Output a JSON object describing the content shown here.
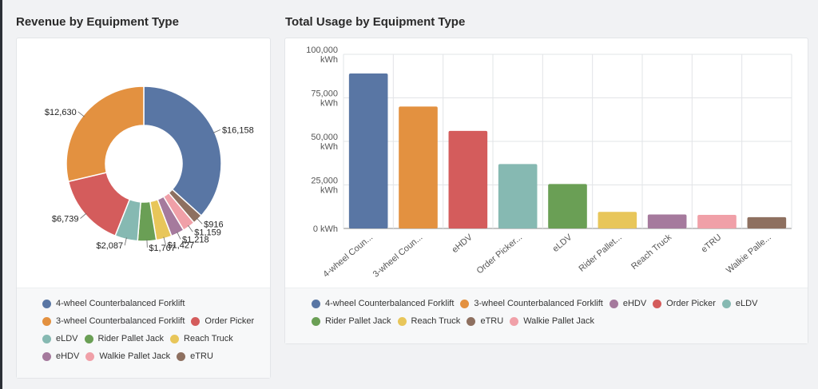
{
  "titles": {
    "left": "Revenue by Equipment Type",
    "right": "Total Usage by Equipment Type"
  },
  "colors": {
    "4-wheel Counterbalanced Forklift": "#5976a4",
    "3-wheel Counterbalanced Forklift": "#e39140",
    "Order Picker": "#d45c5c",
    "eLDV": "#86b9b2",
    "Rider Pallet Jack": "#6a9f55",
    "Reach Truck": "#e8c65a",
    "eHDV": "#a57a9d",
    "Walkie Pallet Jack": "#f0a0a8",
    "eTRU": "#8e7060"
  },
  "chart_data": [
    {
      "type": "pie",
      "title": "Revenue by Equipment Type",
      "slices": [
        {
          "name": "4-wheel Counterbalanced Forklift",
          "value": 16158,
          "label": "$16,158",
          "color": "#5976a4"
        },
        {
          "name": "eTRU",
          "value": 916,
          "label": "$916",
          "color": "#8e7060"
        },
        {
          "name": "Walkie Pallet Jack",
          "value": 1159,
          "label": "$1,159",
          "color": "#f0a0a8"
        },
        {
          "name": "eHDV",
          "value": 1218,
          "label": "$1,218",
          "color": "#a57a9d"
        },
        {
          "name": "Reach Truck",
          "value": 1427,
          "label": "$1,427",
          "color": "#e8c65a"
        },
        {
          "name": "Rider Pallet Jack",
          "value": 1707,
          "label": "$1,707",
          "color": "#6a9f55"
        },
        {
          "name": "eLDV",
          "value": 2087,
          "label": "$2,087",
          "color": "#86b9b2"
        },
        {
          "name": "Order Picker",
          "value": 6739,
          "label": "$6,739",
          "color": "#d45c5c"
        },
        {
          "name": "3-wheel Counterbalanced Forklift",
          "value": 12630,
          "label": "$12,630",
          "color": "#e39140"
        }
      ],
      "legend": [
        [
          "4-wheel Counterbalanced Forklift"
        ],
        [
          "3-wheel Counterbalanced Forklift",
          "Order Picker"
        ],
        [
          "eLDV",
          "Rider Pallet Jack",
          "Reach Truck"
        ],
        [
          "eHDV",
          "Walkie Pallet Jack",
          "eTRU"
        ]
      ],
      "legend_position": "bottom"
    },
    {
      "type": "bar",
      "title": "Total Usage by Equipment Type",
      "categories": [
        "4-wheel Coun...",
        "3-wheel Coun...",
        "eHDV",
        "Order Picker...",
        "eLDV",
        "Rider Pallet...",
        "Reach Truck",
        "eTRU",
        "Walkie Palle..."
      ],
      "series_names": [
        "4-wheel Counterbalanced Forklift",
        "3-wheel Counterbalanced Forklift",
        "eHDV",
        "Order Picker",
        "eLDV",
        "Rider Pallet Jack",
        "Reach Truck",
        "eTRU",
        "Walkie Pallet Jack"
      ],
      "values": [
        89000,
        70000,
        56000,
        37000,
        25500,
        9500,
        8000,
        7800,
        6500
      ],
      "colors": [
        "#5976a4",
        "#e39140",
        "#d45c5c",
        "#86b9b2",
        "#6a9f55",
        "#e8c65a",
        "#a57a9d",
        "#f0a0a8",
        "#8e7060"
      ],
      "ylim": [
        0,
        100000
      ],
      "yticks": [
        {
          "value": 100000,
          "label": "100,000",
          "unit": "kWh"
        },
        {
          "value": 75000,
          "label": "75,000",
          "unit": "kWh"
        },
        {
          "value": 50000,
          "label": "50,000",
          "unit": "kWh"
        },
        {
          "value": 25000,
          "label": "25,000",
          "unit": "kWh"
        },
        {
          "value": 0,
          "label": "0 kWh",
          "unit": ""
        }
      ],
      "grid": true,
      "legend": [
        [
          "4-wheel Counterbalanced Forklift",
          "3-wheel Counterbalanced Forklift",
          "eHDV",
          "Order Picker",
          "eLDV"
        ],
        [
          "Rider Pallet Jack",
          "Reach Truck",
          "eTRU",
          "Walkie Pallet Jack"
        ]
      ],
      "legend_position": "bottom"
    }
  ]
}
